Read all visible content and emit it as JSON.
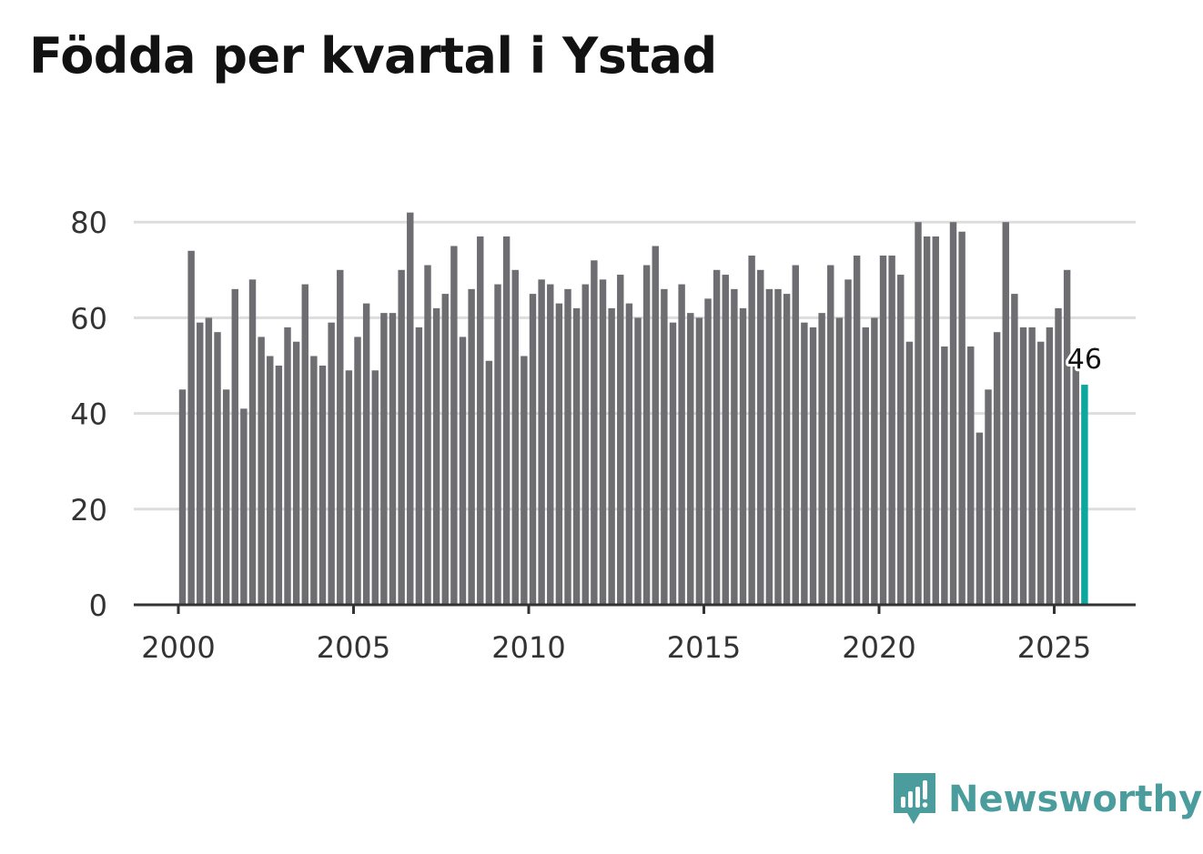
{
  "title": "Födda per kvartal i Ystad",
  "brand": {
    "name": "Newsworthy",
    "color": "#4b9c9c",
    "icon": "newsworthy-logo-icon"
  },
  "colors": {
    "bar": "#6e6d72",
    "highlight": "#0ca8a0",
    "grid": "#dddddd",
    "axis": "#333333"
  },
  "chart_data": {
    "type": "bar",
    "title": "Födda per kvartal i Ystad",
    "xlabel": "",
    "ylabel": "",
    "ylim": [
      0,
      85
    ],
    "yticks": [
      0,
      20,
      40,
      60,
      80
    ],
    "xticks": [
      2000,
      2005,
      2010,
      2015,
      2020,
      2025
    ],
    "xlim": [
      1999.75,
      2027.5
    ],
    "grid": true,
    "x_start_year": 2000,
    "periods_per_year": 4,
    "values": [
      45,
      74,
      59,
      60,
      57,
      45,
      66,
      41,
      68,
      56,
      52,
      50,
      58,
      55,
      67,
      52,
      50,
      59,
      70,
      49,
      56,
      63,
      49,
      61,
      61,
      70,
      82,
      58,
      71,
      62,
      65,
      75,
      56,
      66,
      77,
      51,
      67,
      77,
      70,
      52,
      65,
      68,
      67,
      63,
      66,
      62,
      67,
      72,
      68,
      62,
      69,
      63,
      60,
      71,
      75,
      66,
      59,
      67,
      61,
      60,
      64,
      70,
      69,
      66,
      62,
      73,
      70,
      66,
      66,
      65,
      71,
      59,
      58,
      61,
      71,
      60,
      68,
      73,
      58,
      60,
      73,
      73,
      69,
      55,
      80,
      77,
      77,
      54,
      80,
      78,
      54,
      36,
      45,
      57,
      80,
      65,
      58,
      58,
      55,
      58,
      62,
      70,
      50,
      46
    ],
    "highlight_last": true,
    "highlight_label": "46"
  }
}
